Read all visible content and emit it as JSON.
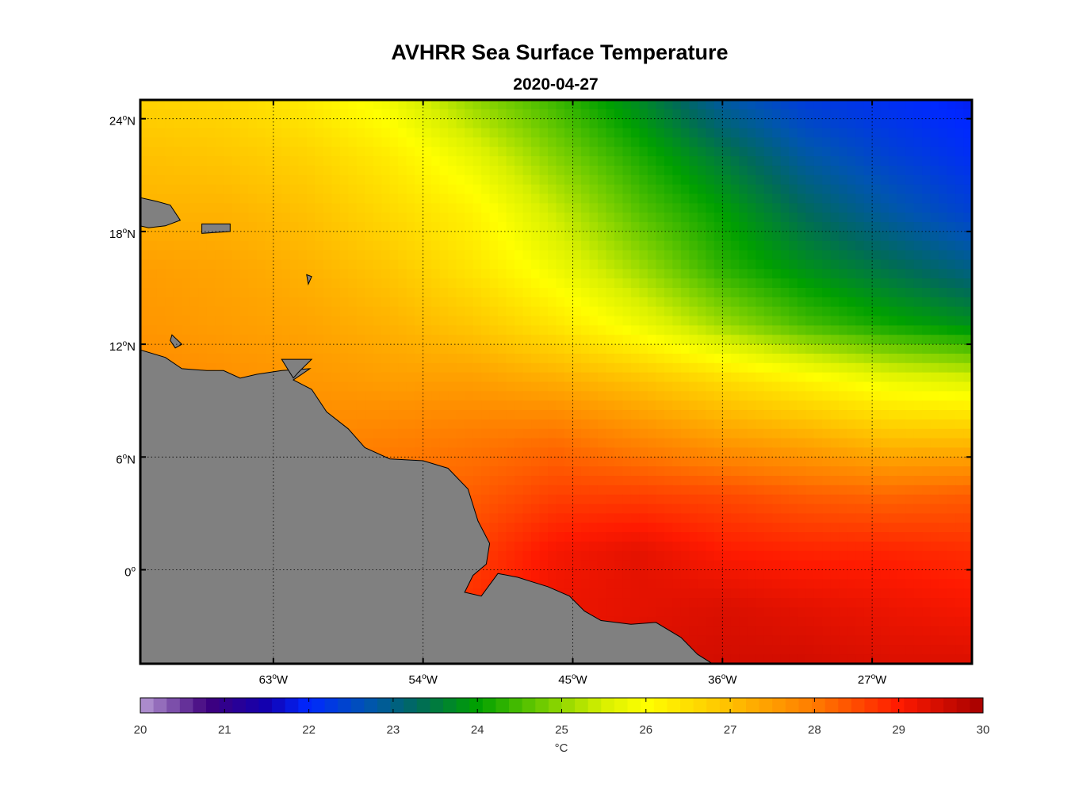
{
  "chart_data": {
    "type": "heatmap",
    "title": "AVHRR Sea Surface Temperature",
    "subtitle": "2020-04-27",
    "lon_range": [
      -71,
      -21
    ],
    "lat_range": [
      -5,
      25
    ],
    "lon_ticks": [
      {
        "value": -63,
        "label": "63",
        "suffix": "W"
      },
      {
        "value": -54,
        "label": "54",
        "suffix": "W"
      },
      {
        "value": -45,
        "label": "45",
        "suffix": "W"
      },
      {
        "value": -36,
        "label": "36",
        "suffix": "W"
      },
      {
        "value": -27,
        "label": "27",
        "suffix": "W"
      }
    ],
    "lat_ticks": [
      {
        "value": 24,
        "label": "24",
        "suffix": "N"
      },
      {
        "value": 18,
        "label": "18",
        "suffix": "N"
      },
      {
        "value": 12,
        "label": "12",
        "suffix": "N"
      },
      {
        "value": 6,
        "label": "6",
        "suffix": "N"
      },
      {
        "value": 0,
        "label": "0",
        "suffix": ""
      }
    ],
    "degree_symbol": "o",
    "grid": "dotted",
    "land_color": "#808080",
    "colorbar": {
      "min": 20,
      "max": 30,
      "ticks": [
        "20",
        "21",
        "22",
        "23",
        "24",
        "25",
        "26",
        "27",
        "28",
        "29",
        "30"
      ],
      "unit": "°C",
      "stops": [
        {
          "value": 20,
          "color": "#b79ad4"
        },
        {
          "value": 20.8,
          "color": "#3f007d"
        },
        {
          "value": 21.5,
          "color": "#1200b0"
        },
        {
          "value": 22.0,
          "color": "#0028ff"
        },
        {
          "value": 22.7,
          "color": "#0055b0"
        },
        {
          "value": 23.3,
          "color": "#006a5a"
        },
        {
          "value": 24.0,
          "color": "#00a000"
        },
        {
          "value": 24.7,
          "color": "#66c800"
        },
        {
          "value": 25.5,
          "color": "#d8f000"
        },
        {
          "value": 26.0,
          "color": "#ffff00"
        },
        {
          "value": 27.0,
          "color": "#ffc000"
        },
        {
          "value": 28.0,
          "color": "#ff7a00"
        },
        {
          "value": 29.0,
          "color": "#ff1a00"
        },
        {
          "value": 30.0,
          "color": "#a50000"
        }
      ]
    },
    "sst_grid": {
      "lons": [
        -71,
        -66,
        -61,
        -56,
        -51,
        -46,
        -41,
        -36,
        -31,
        -26,
        -21
      ],
      "lats": [
        25,
        22,
        19,
        16,
        13,
        10,
        7,
        4,
        1,
        -2,
        -5
      ],
      "values": [
        [
          26.7,
          26.6,
          26.3,
          25.8,
          25.0,
          24.4,
          23.7,
          22.8,
          22.3,
          22.1,
          21.9
        ],
        [
          27.0,
          26.9,
          26.7,
          26.3,
          25.7,
          24.9,
          24.2,
          23.5,
          22.8,
          22.4,
          22.1
        ],
        [
          27.2,
          27.2,
          27.0,
          26.6,
          26.2,
          25.4,
          24.6,
          24.0,
          23.3,
          22.8,
          22.4
        ],
        [
          27.5,
          27.4,
          27.2,
          26.9,
          26.4,
          25.8,
          25.1,
          24.3,
          23.8,
          23.4,
          23.0
        ],
        [
          27.6,
          27.5,
          27.4,
          27.2,
          26.9,
          26.4,
          25.8,
          25.1,
          24.5,
          24.1,
          23.8
        ],
        [
          27.8,
          27.7,
          27.6,
          27.5,
          27.5,
          27.3,
          27.0,
          26.6,
          26.2,
          25.8,
          25.6
        ],
        [
          27.9,
          27.8,
          27.8,
          27.9,
          28.0,
          28.1,
          27.8,
          27.5,
          27.3,
          27.0,
          27.0
        ],
        [
          28.0,
          28.0,
          28.0,
          28.2,
          28.3,
          28.6,
          28.6,
          28.5,
          28.3,
          28.2,
          28.3
        ],
        [
          28.2,
          28.2,
          28.2,
          28.4,
          28.6,
          29.1,
          29.3,
          29.0,
          28.9,
          28.9,
          28.8
        ],
        [
          28.3,
          28.3,
          28.3,
          28.5,
          28.8,
          29.2,
          29.3,
          29.4,
          29.3,
          29.2,
          29.1
        ],
        [
          28.4,
          28.4,
          28.4,
          28.6,
          28.9,
          29.2,
          29.4,
          29.5,
          29.5,
          29.4,
          29.4
        ]
      ]
    },
    "land": [
      [
        [
          -71,
          11.7
        ],
        [
          -69.5,
          11.3
        ],
        [
          -68.5,
          10.7
        ],
        [
          -67,
          10.6
        ],
        [
          -66,
          10.6
        ],
        [
          -65,
          10.2
        ],
        [
          -64,
          10.4
        ],
        [
          -62.5,
          10.6
        ],
        [
          -60.8,
          10.7
        ],
        [
          -61.8,
          10.1
        ],
        [
          -60.7,
          9.6
        ],
        [
          -59.8,
          8.4
        ],
        [
          -58.5,
          7.5
        ],
        [
          -57.5,
          6.5
        ],
        [
          -56,
          5.9
        ],
        [
          -54,
          5.8
        ],
        [
          -52.5,
          5.4
        ],
        [
          -51.3,
          4.3
        ],
        [
          -50.7,
          2.6
        ],
        [
          -50.0,
          1.4
        ],
        [
          -50.2,
          0.3
        ],
        [
          -51,
          -0.3
        ],
        [
          -51.5,
          -1.2
        ],
        [
          -50.5,
          -1.4
        ],
        [
          -49.5,
          -0.2
        ],
        [
          -48.3,
          -0.4
        ],
        [
          -47.6,
          -0.6
        ],
        [
          -46.5,
          -0.9
        ],
        [
          -45.2,
          -1.4
        ],
        [
          -44.3,
          -2.2
        ],
        [
          -43.3,
          -2.7
        ],
        [
          -41.5,
          -2.9
        ],
        [
          -40,
          -2.8
        ],
        [
          -38.5,
          -3.6
        ],
        [
          -37.5,
          -4.5
        ],
        [
          -36.6,
          -5
        ],
        [
          -71,
          -5
        ]
      ],
      [
        [
          -69.1,
          12.5
        ],
        [
          -68.5,
          12.0
        ],
        [
          -68.9,
          11.8
        ],
        [
          -69.2,
          12.2
        ]
      ],
      [
        [
          -71,
          19.8
        ],
        [
          -70,
          19.6
        ],
        [
          -69.2,
          19.4
        ],
        [
          -68.6,
          18.6
        ],
        [
          -69.5,
          18.3
        ],
        [
          -70.5,
          18.2
        ],
        [
          -71,
          18.3
        ]
      ],
      [
        [
          -67.3,
          18.4
        ],
        [
          -65.6,
          18.4
        ],
        [
          -65.6,
          18.0
        ],
        [
          -67.3,
          17.9
        ]
      ],
      [
        [
          -62.5,
          11.2
        ],
        [
          -60.7,
          11.2
        ],
        [
          -61.5,
          10.5
        ],
        [
          -61.8,
          10.2
        ]
      ],
      [
        [
          -61.0,
          15.7
        ],
        [
          -60.7,
          15.6
        ],
        [
          -60.9,
          15.2
        ]
      ]
    ]
  }
}
